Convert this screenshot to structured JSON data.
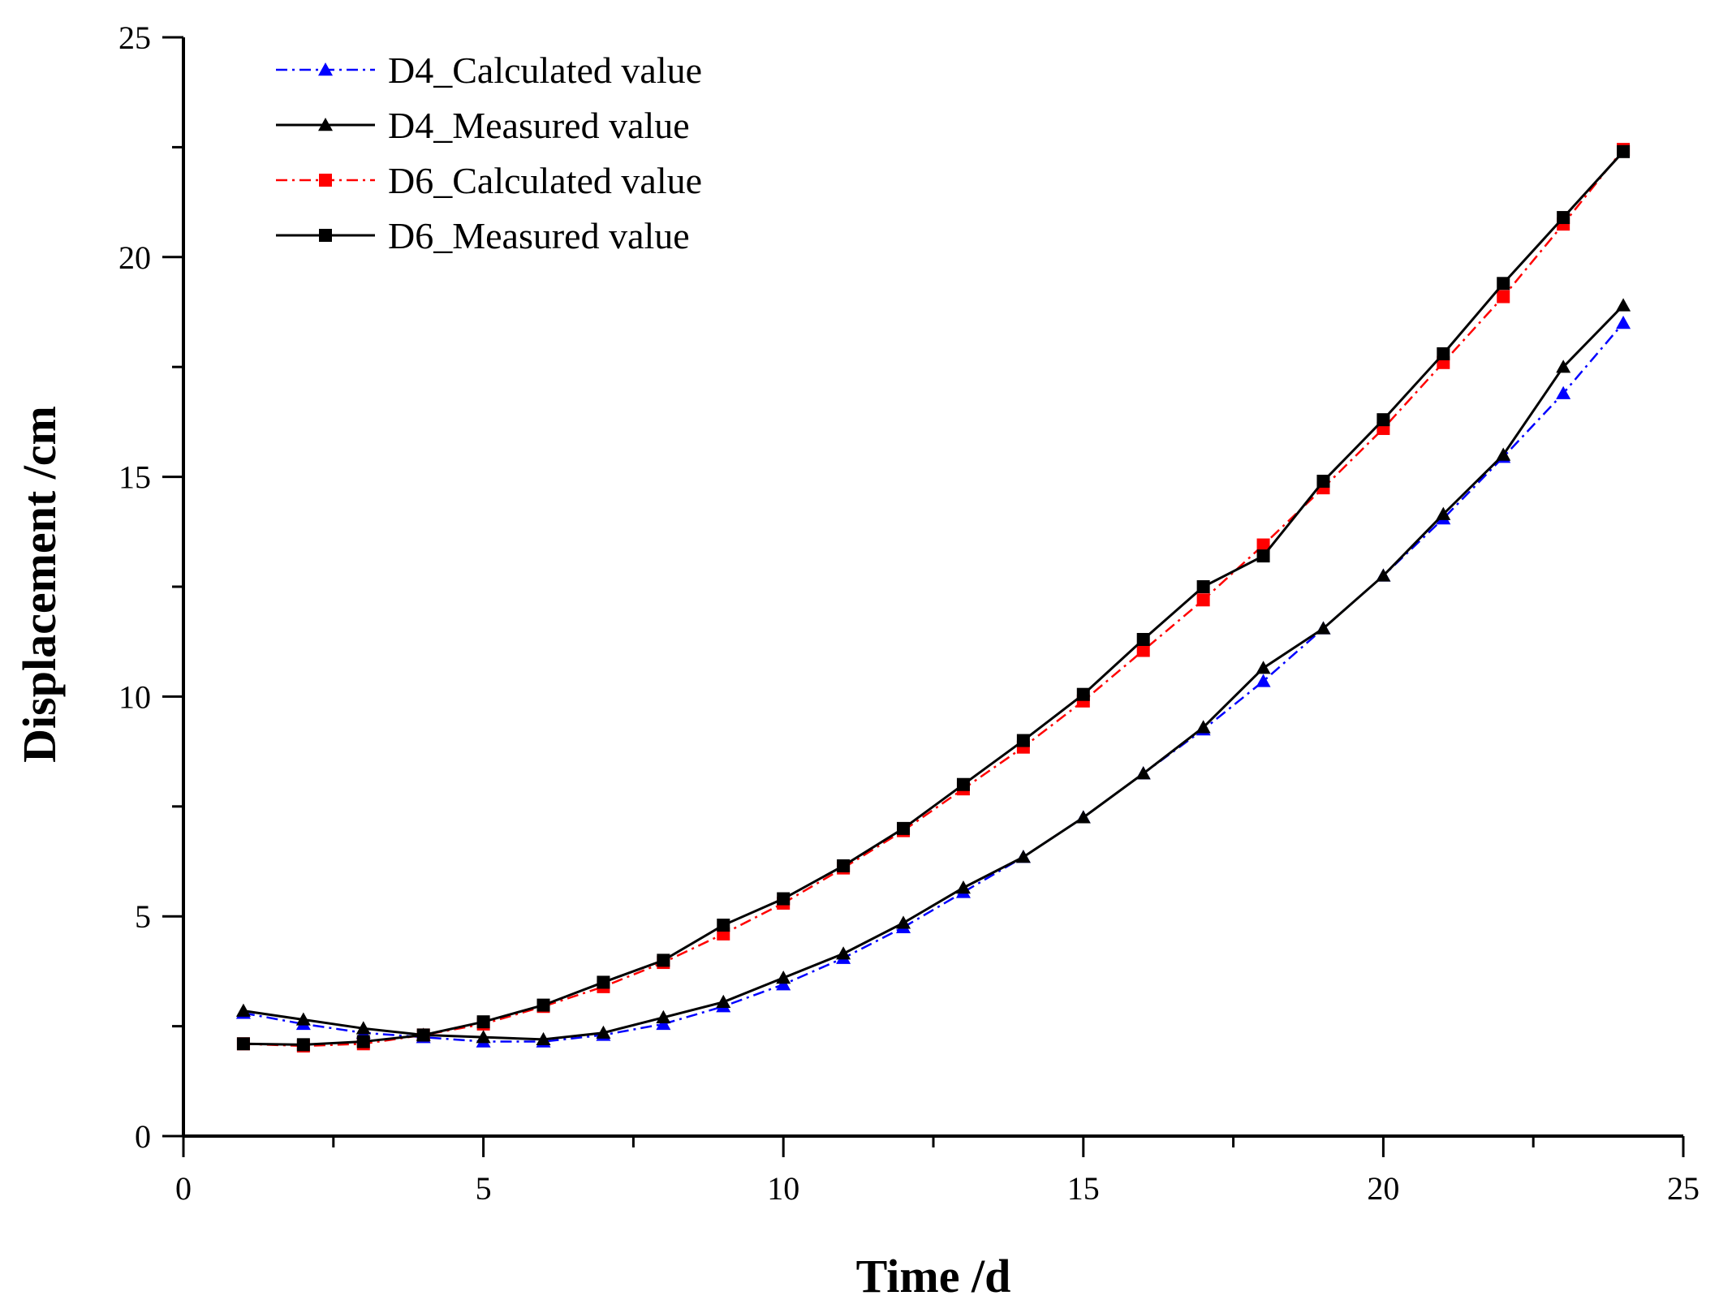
{
  "chart_data": {
    "type": "line",
    "title": "",
    "xlabel": "Time /d",
    "ylabel": "Displacement /cm",
    "xlim": [
      0,
      25
    ],
    "ylim": [
      0,
      25
    ],
    "xticks": [
      0,
      5,
      10,
      15,
      20,
      25
    ],
    "yticks": [
      0,
      5,
      10,
      15,
      20,
      25
    ],
    "xtick_labels": [
      "0",
      "5",
      "10",
      "15",
      "20",
      "25"
    ],
    "ytick_labels": [
      "0",
      "5",
      "10",
      "15",
      "20",
      "25"
    ],
    "grid": false,
    "legend_position": "top-left",
    "x": [
      1,
      2,
      3,
      4,
      5,
      6,
      7,
      8,
      9,
      10,
      11,
      12,
      13,
      14,
      15,
      16,
      17,
      18,
      19,
      20,
      21,
      22,
      23,
      24
    ],
    "series": [
      {
        "name": "D4_Calculated value",
        "color": "#0000ff",
        "marker": "triangle",
        "dash": "dashdot",
        "values": [
          2.8,
          2.55,
          2.35,
          2.25,
          2.15,
          2.15,
          2.3,
          2.55,
          2.95,
          3.45,
          4.05,
          4.75,
          5.55,
          6.35,
          7.25,
          8.25,
          9.25,
          10.35,
          11.55,
          12.75,
          14.05,
          15.45,
          16.9,
          18.5
        ]
      },
      {
        "name": "D4_Measured value",
        "color": "#000000",
        "marker": "triangle",
        "dash": "solid",
        "values": [
          2.85,
          2.65,
          2.45,
          2.3,
          2.25,
          2.2,
          2.35,
          2.7,
          3.05,
          3.6,
          4.15,
          4.85,
          5.65,
          6.35,
          7.25,
          8.25,
          9.3,
          10.65,
          11.55,
          12.75,
          14.15,
          15.5,
          17.5,
          18.9
        ]
      },
      {
        "name": "D6_Calculated value",
        "color": "#ff0000",
        "marker": "square",
        "dash": "dashdot",
        "values": [
          2.1,
          2.05,
          2.1,
          2.3,
          2.55,
          2.95,
          3.4,
          3.95,
          4.6,
          5.3,
          6.1,
          6.95,
          7.9,
          8.85,
          9.9,
          11.05,
          12.2,
          13.45,
          14.75,
          16.1,
          17.6,
          19.1,
          20.75,
          22.45
        ]
      },
      {
        "name": "D6_Measured value",
        "color": "#000000",
        "marker": "square",
        "dash": "solid",
        "values": [
          2.1,
          2.08,
          2.15,
          2.3,
          2.6,
          2.98,
          3.5,
          4.0,
          4.8,
          5.4,
          6.15,
          7.0,
          8.0,
          9.0,
          10.05,
          11.3,
          12.5,
          13.2,
          14.9,
          16.3,
          17.8,
          19.4,
          20.9,
          22.4
        ]
      }
    ]
  }
}
